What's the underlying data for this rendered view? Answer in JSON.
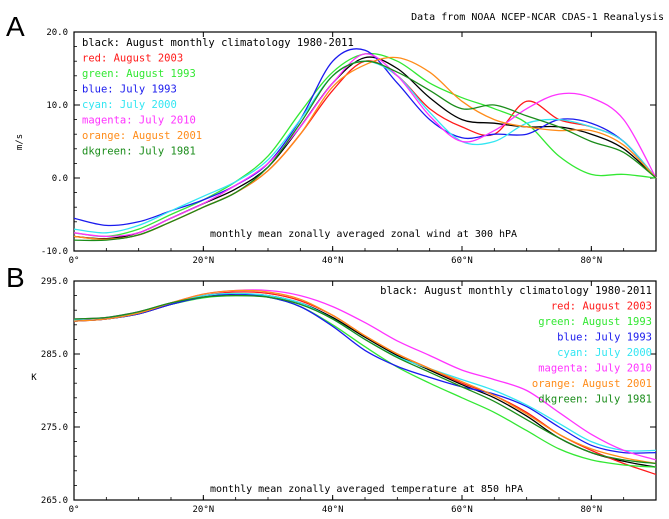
{
  "source_note": "Data from NOAA NCEP-NCAR CDAS-1 Reanalysis",
  "colors": {
    "black": "#000000",
    "red": "#ff1a1a",
    "green": "#33e833",
    "blue": "#1a1aee",
    "cyan": "#33e6f2",
    "magenta": "#ff33ff",
    "orange": "#ff8c1a",
    "dkgreen": "#1a8c1a"
  },
  "chart_data": [
    {
      "type": "line",
      "panel_label": "A",
      "ylabel": "m/s",
      "annotation": "monthly mean zonally averaged zonal wind at 300 hPA",
      "xlim": [
        0,
        90
      ],
      "ylim": [
        -10,
        20
      ],
      "xticks": [
        0,
        20,
        40,
        60,
        80
      ],
      "xticklabels": [
        "0°",
        "20°N",
        "40°N",
        "60°N",
        "80°N"
      ],
      "yticks": [
        -10,
        0,
        10,
        20
      ],
      "yticklabels": [
        "-10.0",
        "0.0",
        "10.0",
        "20.0"
      ],
      "legend_position": "top-left",
      "x": [
        0,
        5,
        10,
        15,
        20,
        25,
        30,
        35,
        40,
        45,
        50,
        55,
        60,
        65,
        70,
        75,
        80,
        85,
        90
      ],
      "series": [
        {
          "name": "black: August monthly climatology 1980-2011",
          "color_key": "black",
          "values": [
            -8,
            -8.3,
            -7.5,
            -5.5,
            -3.5,
            -1.5,
            1.5,
            7,
            13,
            16.5,
            15,
            11,
            8,
            7.5,
            7,
            7,
            6,
            4,
            0
          ]
        },
        {
          "name": "red: August 2003",
          "color_key": "red",
          "values": [
            -8,
            -8.4,
            -7.8,
            -6,
            -4,
            -2,
            1,
            6,
            12,
            16,
            14,
            9.5,
            7,
            6,
            10.5,
            8,
            7,
            5,
            0
          ]
        },
        {
          "name": "green: August 1993",
          "color_key": "green",
          "values": [
            -7.5,
            -8,
            -7,
            -5,
            -3,
            -0.5,
            3,
            9,
            14.5,
            17,
            16,
            13,
            11,
            9.5,
            7.5,
            3,
            0.5,
            0.5,
            0
          ]
        },
        {
          "name": "blue: July 1993",
          "color_key": "blue",
          "values": [
            -5.5,
            -6.5,
            -6,
            -4.5,
            -3,
            -1,
            2,
            8,
            16,
            17.5,
            13,
            8,
            5.5,
            6,
            6,
            8,
            7.5,
            5,
            0
          ]
        },
        {
          "name": "cyan: July 2000",
          "color_key": "cyan",
          "values": [
            -7,
            -7.5,
            -6.5,
            -4.5,
            -2.5,
            -0.5,
            2.5,
            8,
            14,
            16,
            14,
            9,
            5,
            5,
            7.5,
            8,
            7,
            5,
            0
          ]
        },
        {
          "name": "magenta: July 2010",
          "color_key": "magenta",
          "values": [
            -7.5,
            -8,
            -7.5,
            -5.5,
            -3.5,
            -1,
            2,
            7,
            13,
            17,
            14,
            8.5,
            5,
            6.5,
            9.5,
            11.5,
            11,
            8,
            0
          ]
        },
        {
          "name": "orange: August 2001",
          "color_key": "orange",
          "values": [
            -8,
            -8.4,
            -7.8,
            -6,
            -4,
            -2,
            1,
            6,
            12.5,
            15.5,
            16.5,
            14.5,
            10.5,
            8,
            7,
            6.5,
            6.5,
            4.5,
            0
          ]
        },
        {
          "name": "dkgreen: July 1981",
          "color_key": "dkgreen",
          "values": [
            -8.5,
            -8.5,
            -7.8,
            -6,
            -4,
            -2,
            1.5,
            7.5,
            14,
            16,
            14.5,
            12,
            9.5,
            10,
            8.5,
            7,
            5,
            3.5,
            0
          ]
        }
      ]
    },
    {
      "type": "line",
      "panel_label": "B",
      "ylabel": "K",
      "annotation": "monthly mean zonally averaged temperature at 850 hPA",
      "xlim": [
        0,
        90
      ],
      "ylim": [
        265,
        295
      ],
      "xticks": [
        0,
        20,
        40,
        60,
        80
      ],
      "xticklabels": [
        "0°",
        "20°N",
        "40°N",
        "60°N",
        "80°N"
      ],
      "yticks": [
        265,
        275,
        285,
        295
      ],
      "yticklabels": [
        "265.0",
        "275.0",
        "285.0",
        "295.0"
      ],
      "legend_position": "top-right",
      "x": [
        0,
        5,
        10,
        15,
        20,
        25,
        30,
        35,
        40,
        45,
        50,
        55,
        60,
        65,
        70,
        75,
        80,
        85,
        90
      ],
      "series": [
        {
          "name": "black: August monthly climatology 1980-2011",
          "color_key": "black",
          "values": [
            289.5,
            289.8,
            290.5,
            291.8,
            292.8,
            293.2,
            293,
            292,
            290,
            287.3,
            284.8,
            282.8,
            280.8,
            279,
            276.5,
            273.5,
            271.5,
            270.3,
            269.5
          ]
        },
        {
          "name": "red: August 2003",
          "color_key": "red",
          "values": [
            289.5,
            289.8,
            290.6,
            292,
            293,
            293.5,
            293.3,
            292.3,
            290.3,
            287.5,
            285,
            283,
            281,
            279.3,
            277,
            274,
            271.8,
            270,
            268.5
          ]
        },
        {
          "name": "green: August 1993",
          "color_key": "green",
          "values": [
            289.8,
            290,
            290.6,
            291.8,
            292.7,
            293,
            292.8,
            291.5,
            289,
            286,
            283.2,
            281,
            279,
            277,
            274.5,
            272,
            270.5,
            269.8,
            269.5
          ]
        },
        {
          "name": "blue: July 1993",
          "color_key": "blue",
          "values": [
            289.5,
            289.8,
            290.5,
            291.8,
            292.8,
            293.2,
            292.8,
            291.5,
            288.8,
            285.5,
            283.3,
            281.8,
            280.5,
            279.5,
            277.8,
            275,
            272.5,
            271.5,
            271.5
          ]
        },
        {
          "name": "cyan: July 2000",
          "color_key": "cyan",
          "values": [
            289.7,
            290,
            290.8,
            292,
            293,
            293.3,
            293,
            292,
            289.8,
            287,
            284.6,
            283,
            281.5,
            280,
            278,
            275.5,
            273,
            271.8,
            271.8
          ]
        },
        {
          "name": "magenta: July 2010",
          "color_key": "magenta",
          "values": [
            289.8,
            290,
            290.8,
            292,
            293.2,
            293.7,
            293.7,
            293,
            291.5,
            289.3,
            286.8,
            284.8,
            282.8,
            281.5,
            280,
            277,
            274,
            271.8,
            270.5
          ]
        },
        {
          "name": "orange: August 2001",
          "color_key": "orange",
          "values": [
            289.5,
            289.8,
            290.6,
            292,
            293.2,
            293.7,
            293.5,
            292.5,
            290.3,
            287.5,
            285,
            283,
            281.2,
            279.3,
            276.8,
            274,
            272,
            270.8,
            270
          ]
        },
        {
          "name": "dkgreen: July 1981",
          "color_key": "dkgreen",
          "values": [
            289.8,
            290,
            290.8,
            292,
            292.8,
            293,
            292.8,
            291.8,
            289.8,
            287,
            284.5,
            282.5,
            280.5,
            278.5,
            276,
            273.5,
            271.5,
            270.5,
            270
          ]
        }
      ]
    }
  ]
}
